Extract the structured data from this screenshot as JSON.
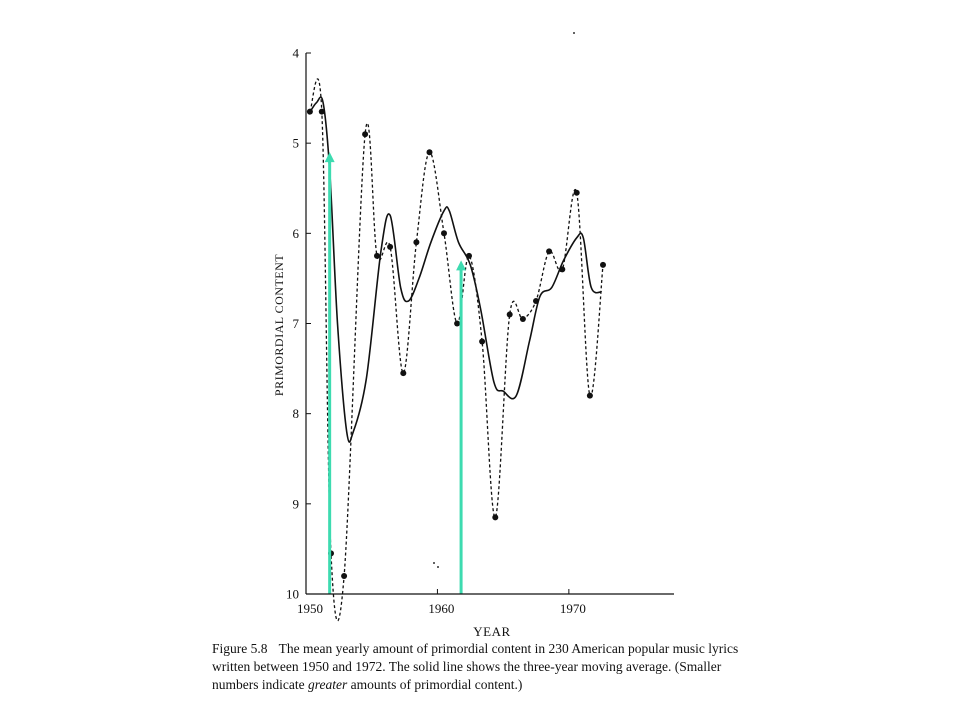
{
  "caption": {
    "label": "Figure 5.8",
    "text_a": "The mean yearly amount of primordial content in 230 American popular music lyrics written between 1950 and 1972. The solid line shows the three-year moving average. (Smaller numbers indicate ",
    "text_em": "greater",
    "text_b": " amounts of primordial content.)"
  },
  "colors": {
    "ink": "#111111",
    "arrow": "#3ddbb0"
  },
  "chart_data": {
    "type": "line",
    "xlabel": "YEAR",
    "ylabel": "PRIMORDIAL CONTENT",
    "xlim": [
      1950,
      1978
    ],
    "ylim": [
      10,
      4
    ],
    "y_axis_inverted": true,
    "x_ticks": [
      1950,
      1960,
      1970
    ],
    "y_ticks": [
      4,
      5,
      6,
      7,
      8,
      9,
      10
    ],
    "grid": false,
    "series": [
      {
        "style": "dashed-with-points",
        "points": [
          [
            1950.3,
            4.65
          ],
          [
            1951.2,
            4.65
          ],
          [
            1951.9,
            9.55
          ],
          [
            1952.9,
            9.8
          ],
          [
            1954.5,
            4.9
          ],
          [
            1955.4,
            6.25
          ],
          [
            1956.4,
            6.15
          ],
          [
            1957.4,
            7.55
          ],
          [
            1958.4,
            6.1
          ],
          [
            1959.4,
            5.1
          ],
          [
            1960.5,
            6.0
          ],
          [
            1961.5,
            7.0
          ],
          [
            1962.4,
            6.25
          ],
          [
            1963.4,
            7.2
          ],
          [
            1964.4,
            9.15
          ],
          [
            1965.5,
            6.9
          ],
          [
            1966.5,
            6.95
          ],
          [
            1967.5,
            6.75
          ],
          [
            1968.5,
            6.2
          ],
          [
            1969.5,
            6.4
          ],
          [
            1970.6,
            5.55
          ],
          [
            1971.6,
            7.8
          ],
          [
            1972.6,
            6.35
          ]
        ]
      },
      {
        "style": "solid",
        "points": [
          [
            1950.2,
            4.68
          ],
          [
            1950.8,
            4.55
          ],
          [
            1951.3,
            4.55
          ],
          [
            1951.8,
            5.3
          ],
          [
            1952.4,
            7.0
          ],
          [
            1953.1,
            8.2
          ],
          [
            1953.6,
            8.2
          ],
          [
            1954.6,
            7.6
          ],
          [
            1955.7,
            6.2
          ],
          [
            1956.4,
            5.8
          ],
          [
            1957.2,
            6.6
          ],
          [
            1957.8,
            6.75
          ],
          [
            1958.6,
            6.5
          ],
          [
            1959.5,
            6.1
          ],
          [
            1960.5,
            5.75
          ],
          [
            1960.9,
            5.75
          ],
          [
            1961.6,
            6.1
          ],
          [
            1962.5,
            6.35
          ],
          [
            1963.3,
            6.85
          ],
          [
            1964.3,
            7.65
          ],
          [
            1965.0,
            7.75
          ],
          [
            1966.0,
            7.8
          ],
          [
            1967.0,
            7.2
          ],
          [
            1967.8,
            6.7
          ],
          [
            1968.7,
            6.6
          ],
          [
            1969.6,
            6.3
          ],
          [
            1970.6,
            6.05
          ],
          [
            1971.1,
            6.05
          ],
          [
            1971.7,
            6.6
          ],
          [
            1972.5,
            6.65
          ]
        ]
      }
    ],
    "annotations": [
      {
        "type": "arrow",
        "x": 1951.8,
        "from_y": 10,
        "to_y": 5.1
      },
      {
        "type": "arrow",
        "x": 1961.8,
        "from_y": 10,
        "to_y": 6.3
      }
    ]
  }
}
